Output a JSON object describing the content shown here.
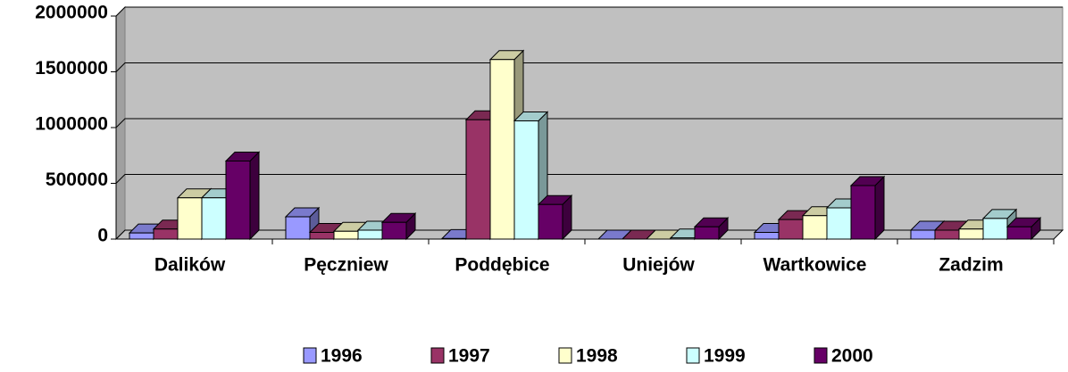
{
  "chart_data": {
    "type": "bar3d",
    "categories": [
      "Dalików",
      "Pęczniew",
      "Poddębice",
      "Uniejów",
      "Wartkowice",
      "Zadzim"
    ],
    "series": [
      {
        "name": "1996",
        "color": "#9999ff",
        "values": [
          55000,
          200000,
          5000,
          0,
          60000,
          80000
        ]
      },
      {
        "name": "1997",
        "color": "#993366",
        "values": [
          90000,
          60000,
          1070000,
          0,
          175000,
          80000
        ]
      },
      {
        "name": "1998",
        "color": "#ffffcc",
        "values": [
          370000,
          70000,
          1610000,
          0,
          210000,
          90000
        ]
      },
      {
        "name": "1999",
        "color": "#ccffff",
        "values": [
          370000,
          80000,
          1060000,
          10000,
          280000,
          185000
        ]
      },
      {
        "name": "2000",
        "color": "#660066",
        "values": [
          700000,
          150000,
          310000,
          110000,
          480000,
          110000
        ]
      }
    ],
    "ylim": [
      0,
      2000000
    ],
    "yticks": [
      0,
      500000,
      1000000,
      1500000,
      2000000
    ],
    "grid": true,
    "legend": "bottom"
  }
}
